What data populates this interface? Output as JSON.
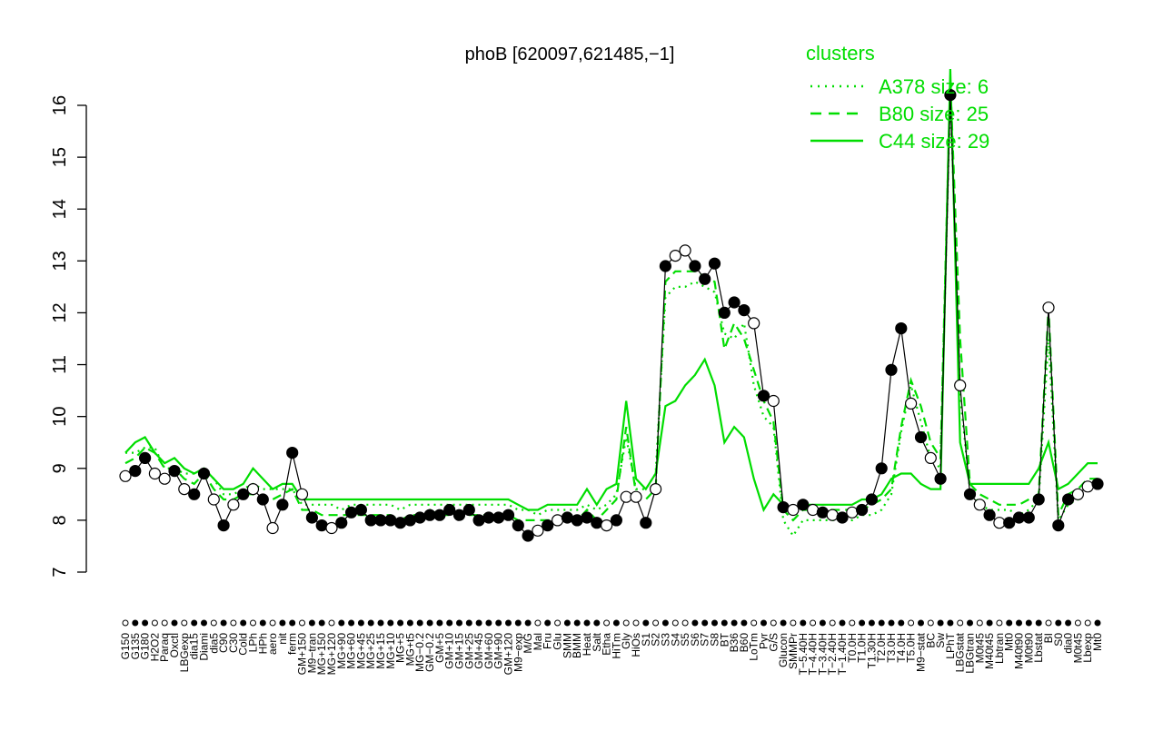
{
  "chart_data": {
    "type": "line",
    "title": "phoB [620097,621485,−1]",
    "ylim": [
      7,
      16.5
    ],
    "y_ticks": [
      7,
      8,
      9,
      10,
      11,
      12,
      13,
      14,
      15,
      16
    ],
    "x_labels": [
      "G150",
      "G135",
      "G180",
      "H2O2",
      "Paraq",
      "Oxctl",
      "LBGexp",
      "dia15",
      "Diami",
      "dia5",
      "C90",
      "C30",
      "Cold",
      "LPh",
      "HPh",
      "aero",
      "nit",
      "ferm",
      "GM+150",
      "M9−tran",
      "MG+150",
      "MG+120",
      "MG+90",
      "MG+60",
      "MG+45",
      "MG+25",
      "MG+15",
      "MG+10",
      "MG+5",
      "MG+t5",
      "MG−0.2",
      "GM−0.2",
      "GM+5",
      "GM+10",
      "GM+15",
      "GM+25",
      "GM+45",
      "GM+60",
      "GM+90",
      "GM+120",
      "M9−exp",
      "M/G",
      "Mal",
      "Fru",
      "Glu",
      "SMM",
      "BMM",
      "Heat",
      "Salt",
      "Etha",
      "HiTm",
      "Gly",
      "HiOs",
      "S1",
      "S2",
      "S3",
      "S4",
      "S5",
      "S6",
      "S7",
      "S8",
      "BT",
      "B36",
      "B60",
      "LoTm",
      "Pyr",
      "G/S",
      "Glucon",
      "SMMPr",
      "T−5.40H",
      "T−4.40H",
      "T−3.40H",
      "T−2.40H",
      "T−1.40H",
      "T0.0H",
      "T1.0H",
      "T1.30H",
      "T2.0H",
      "T3.0H",
      "T4.0H",
      "T5.0H",
      "M9−stat",
      "BC",
      "Sw",
      "LPhT",
      "LBGstat",
      "LBGtran",
      "M0t45",
      "M40t45",
      "Lbtran",
      "Mt0",
      "M40t90",
      "M0t90",
      "Lbstat",
      "BI",
      "S0",
      "dia0",
      "M0t45",
      "Lbexp",
      "Mt0"
    ],
    "series": [
      {
        "name": "A378 size: 6",
        "style": "dotted",
        "color": "#00dd00",
        "values": [
          9.3,
          9.3,
          9.4,
          9.4,
          9.0,
          9.0,
          8.9,
          8.9,
          9.0,
          8.8,
          8.5,
          8.5,
          8.6,
          8.7,
          8.6,
          8.6,
          8.6,
          8.6,
          8.3,
          8.3,
          8.3,
          8.3,
          8.2,
          8.3,
          8.3,
          8.3,
          8.3,
          8.3,
          8.2,
          8.3,
          8.3,
          8.3,
          8.3,
          8.3,
          8.3,
          8.3,
          8.3,
          8.3,
          8.3,
          8.3,
          8.2,
          8.2,
          8.1,
          8.2,
          8.2,
          8.2,
          8.2,
          8.3,
          8.2,
          8.3,
          8.5,
          9.6,
          8.6,
          8.6,
          8.9,
          12.3,
          12.5,
          12.5,
          12.6,
          12.5,
          12.4,
          11.6,
          11.5,
          11.8,
          10.6,
          10.0,
          9.8,
          8.0,
          7.7,
          8.0,
          8.0,
          8.0,
          8.0,
          8.0,
          8.0,
          8.1,
          8.1,
          8.2,
          8.5,
          9.7,
          10.6,
          9.9,
          9.2,
          9.0,
          16.3,
          10.4,
          8.6,
          8.3,
          8.2,
          8.2,
          8.2,
          8.1,
          8.2,
          8.4,
          11.5,
          8.0,
          8.3,
          8.4,
          8.6,
          8.7
        ]
      },
      {
        "name": "B80 size: 25",
        "style": "dashed",
        "color": "#00dd00",
        "values": [
          9.1,
          9.2,
          9.4,
          9.3,
          9.0,
          9.0,
          8.8,
          8.7,
          8.9,
          8.6,
          8.4,
          8.4,
          8.5,
          8.5,
          8.4,
          8.4,
          8.5,
          8.6,
          8.2,
          8.2,
          8.1,
          8.1,
          8.1,
          8.1,
          8.1,
          8.1,
          8.1,
          8.1,
          8.0,
          8.1,
          8.1,
          8.2,
          8.1,
          8.1,
          8.1,
          8.1,
          8.1,
          8.1,
          8.1,
          8.1,
          8.0,
          8.0,
          8.0,
          8.0,
          8.0,
          8.0,
          8.0,
          8.2,
          8.0,
          8.2,
          8.4,
          9.8,
          8.5,
          8.4,
          8.6,
          12.6,
          12.8,
          12.8,
          12.8,
          12.7,
          12.6,
          11.3,
          11.8,
          11.5,
          10.9,
          10.3,
          9.9,
          8.2,
          8.0,
          8.2,
          8.2,
          8.2,
          8.2,
          8.2,
          8.2,
          8.2,
          8.3,
          8.4,
          8.6,
          9.8,
          10.7,
          10.2,
          9.5,
          9.2,
          16.5,
          11.5,
          8.7,
          8.5,
          8.4,
          8.3,
          8.3,
          8.3,
          8.4,
          8.5,
          12.1,
          8.1,
          8.5,
          8.6,
          8.8,
          8.8
        ]
      },
      {
        "name": "C44 size: 29",
        "style": "solid",
        "color": "#00dd00",
        "values": [
          9.3,
          9.5,
          9.6,
          9.3,
          9.1,
          9.2,
          9.0,
          8.9,
          9.0,
          8.8,
          8.6,
          8.6,
          8.7,
          9.0,
          8.8,
          8.6,
          8.7,
          8.7,
          8.4,
          8.4,
          8.4,
          8.4,
          8.4,
          8.4,
          8.4,
          8.4,
          8.4,
          8.4,
          8.4,
          8.4,
          8.4,
          8.4,
          8.4,
          8.4,
          8.4,
          8.4,
          8.4,
          8.4,
          8.4,
          8.4,
          8.3,
          8.2,
          8.2,
          8.3,
          8.3,
          8.3,
          8.3,
          8.6,
          8.3,
          8.6,
          8.7,
          10.3,
          8.8,
          8.6,
          8.9,
          10.2,
          10.3,
          10.6,
          10.8,
          11.1,
          10.6,
          9.5,
          9.8,
          9.6,
          8.8,
          8.2,
          8.5,
          8.3,
          8.2,
          8.3,
          8.3,
          8.3,
          8.3,
          8.3,
          8.3,
          8.4,
          8.4,
          8.5,
          8.8,
          8.9,
          8.9,
          8.7,
          8.6,
          8.6,
          16.7,
          9.5,
          8.7,
          8.7,
          8.7,
          8.7,
          8.7,
          8.7,
          8.7,
          9.0,
          9.5,
          8.6,
          8.7,
          8.9,
          9.1,
          9.1
        ]
      },
      {
        "name": "phoB",
        "style": "points",
        "color": "#000000",
        "values": [
          8.85,
          8.95,
          9.2,
          8.9,
          8.8,
          8.95,
          8.6,
          8.5,
          8.9,
          8.4,
          7.9,
          8.3,
          8.5,
          8.6,
          8.4,
          7.85,
          8.3,
          9.3,
          8.5,
          8.05,
          7.9,
          7.85,
          7.95,
          8.15,
          8.2,
          8.0,
          8.0,
          8.0,
          7.95,
          8.0,
          8.05,
          8.1,
          8.1,
          8.2,
          8.1,
          8.2,
          8.0,
          8.05,
          8.05,
          8.1,
          7.9,
          7.7,
          7.8,
          7.9,
          8.0,
          8.05,
          8.0,
          8.05,
          7.95,
          7.9,
          8.0,
          8.45,
          8.45,
          7.95,
          8.6,
          12.9,
          13.1,
          13.2,
          12.9,
          12.65,
          12.95,
          12.0,
          12.2,
          12.05,
          11.8,
          10.4,
          10.3,
          8.25,
          8.2,
          8.3,
          8.2,
          8.15,
          8.1,
          8.05,
          8.15,
          8.2,
          8.4,
          9.0,
          10.9,
          11.7,
          10.25,
          9.6,
          9.2,
          8.8,
          16.2,
          10.6,
          8.5,
          8.3,
          8.1,
          7.95,
          7.95,
          8.05,
          8.05,
          8.4,
          12.1,
          7.9,
          8.4,
          8.5,
          8.65,
          8.7
        ],
        "filled": [
          false,
          true,
          true,
          false,
          false,
          true,
          false,
          true,
          true,
          false,
          true,
          false,
          true,
          false,
          true,
          false,
          true,
          true,
          false,
          true,
          true,
          false,
          true,
          true,
          true,
          true,
          true,
          true,
          true,
          true,
          true,
          true,
          true,
          true,
          true,
          true,
          true,
          true,
          true,
          true,
          true,
          true,
          false,
          true,
          false,
          true,
          true,
          true,
          true,
          false,
          true,
          false,
          false,
          true,
          false,
          true,
          false,
          false,
          true,
          true,
          true,
          true,
          true,
          true,
          false,
          true,
          false,
          true,
          false,
          true,
          false,
          true,
          false,
          true,
          false,
          true,
          true,
          true,
          true,
          true,
          false,
          true,
          false,
          true,
          true,
          false,
          true,
          false,
          true,
          false,
          true,
          true,
          true,
          true,
          false,
          true,
          true,
          false,
          false,
          true
        ]
      }
    ]
  }
}
